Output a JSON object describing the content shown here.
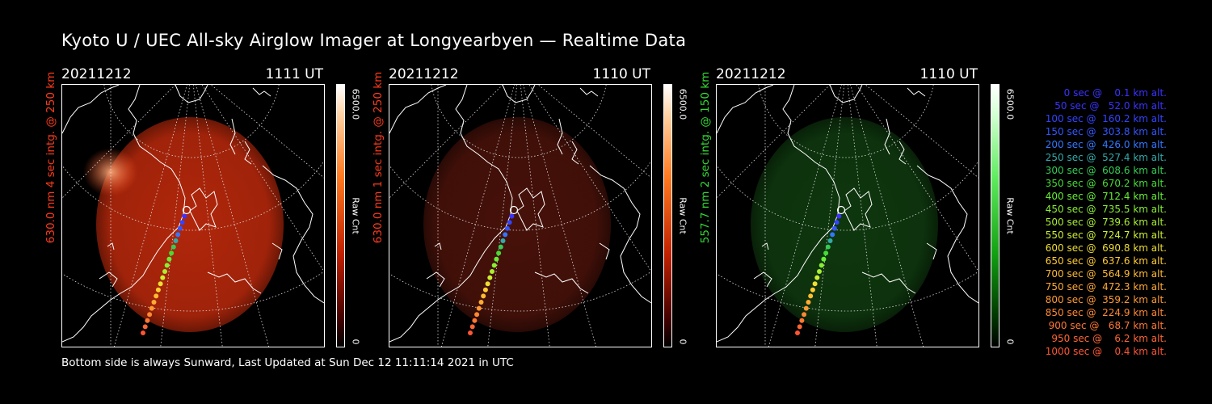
{
  "title": "Kyoto U / UEC All-sky Airglow Imager at Longyearbyen — Realtime Data",
  "footer": "Bottom side is always Sunward, Last Updated at Sun Dec 12 11:11:14 2021 in UTC",
  "panels": [
    {
      "date": "20211212",
      "time": "1111 UT",
      "side_label": "630.0 nm 4 sec intg. @ 250 km",
      "side_color": "#ff3a1a",
      "cbar_max": "6500.0",
      "cbar_label": "Raw Cnt",
      "cbar_min": "0",
      "cbar_color": "#ff2a00",
      "glow_color": "#c02a0c",
      "glow_opacity": 0.92
    },
    {
      "date": "20211212",
      "time": "1110 UT",
      "side_label": "630.0 nm 1 sec intg. @ 250 km",
      "side_color": "#ff3a1a",
      "cbar_max": "6500.0",
      "cbar_label": "Raw Cnt",
      "cbar_min": "0",
      "cbar_color": "#ff2a00",
      "glow_color": "#4a120a",
      "glow_opacity": 0.95
    },
    {
      "date": "20211212",
      "time": "1110 UT",
      "side_label": "557.7 nm 2 sec intg. @ 150 km",
      "side_color": "#33dd33",
      "cbar_max": "6500.0",
      "cbar_label": "Raw Cnt",
      "cbar_min": "0",
      "cbar_color": "#22dd22",
      "glow_color": "#0f3a0f",
      "glow_opacity": 0.95
    }
  ],
  "legend": [
    {
      "text": "   0 sec @    0.1 km alt.",
      "color": "#3a33ff"
    },
    {
      "text": "  50 sec @   52.0 km alt.",
      "color": "#3a33ff"
    },
    {
      "text": " 100 sec @  160.2 km alt.",
      "color": "#3344ff"
    },
    {
      "text": " 150 sec @  303.8 km alt.",
      "color": "#3355ff"
    },
    {
      "text": " 200 sec @  426.0 km alt.",
      "color": "#3377ff"
    },
    {
      "text": " 250 sec @  527.4 km alt.",
      "color": "#33aaaa"
    },
    {
      "text": " 300 sec @  608.6 km alt.",
      "color": "#33cc55"
    },
    {
      "text": " 350 sec @  670.2 km alt.",
      "color": "#44dd33"
    },
    {
      "text": " 400 sec @  712.4 km alt.",
      "color": "#66ee33"
    },
    {
      "text": " 450 sec @  735.5 km alt.",
      "color": "#88ee33"
    },
    {
      "text": " 500 sec @  739.6 km alt.",
      "color": "#aaee33"
    },
    {
      "text": " 550 sec @  724.7 km alt.",
      "color": "#ccee33"
    },
    {
      "text": " 600 sec @  690.8 km alt.",
      "color": "#eedd33"
    },
    {
      "text": " 650 sec @  637.6 km alt.",
      "color": "#ffcc33"
    },
    {
      "text": " 700 sec @  564.9 km alt.",
      "color": "#ffbb33"
    },
    {
      "text": " 750 sec @  472.3 km alt.",
      "color": "#ffaa33"
    },
    {
      "text": " 800 sec @  359.2 km alt.",
      "color": "#ff9933"
    },
    {
      "text": " 850 sec @  224.9 km alt.",
      "color": "#ff8833"
    },
    {
      "text": " 900 sec @   68.7 km alt.",
      "color": "#ff7733"
    },
    {
      "text": " 950 sec @    6.2 km alt.",
      "color": "#ff6633"
    },
    {
      "text": "1000 sec @    0.4 km alt.",
      "color": "#ff5533"
    }
  ]
}
